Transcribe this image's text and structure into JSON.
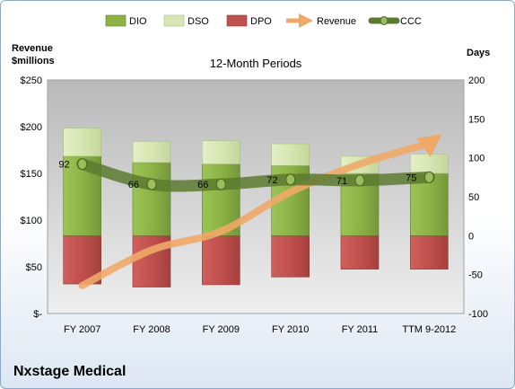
{
  "chart_data": {
    "type": "bar",
    "title": "12-Month Periods",
    "company": "Nxstage Medical",
    "left_axis": {
      "label_line1": "Revenue",
      "label_line2": "$millions",
      "min": 0,
      "max": 250,
      "step": 50,
      "ticks": [
        "$-",
        "$50",
        "$100",
        "$150",
        "$200",
        "$250"
      ]
    },
    "right_axis": {
      "label": "Days",
      "min": -100,
      "max": 200,
      "step": 50,
      "ticks": [
        "-100",
        "-50",
        "0",
        "50",
        "100",
        "150",
        "200"
      ]
    },
    "categories": [
      "FY 2007",
      "FY 2008",
      "FY 2009",
      "FY 2010",
      "FY 2011",
      "TTM 9-2012"
    ],
    "series": [
      {
        "name": "DIO",
        "axis": "right",
        "kind": "stacked-positive",
        "color": "#8db346",
        "values": [
          102,
          94,
          92,
          90,
          80,
          80
        ]
      },
      {
        "name": "DSO",
        "axis": "right",
        "kind": "stacked-positive",
        "color": "#d7e6b2",
        "values": [
          36,
          27,
          30,
          28,
          22,
          25
        ]
      },
      {
        "name": "DPO",
        "axis": "right",
        "kind": "stacked-negative",
        "color": "#c0504d",
        "values": [
          -62,
          -66,
          -63,
          -53,
          -43,
          -43
        ]
      },
      {
        "name": "Revenue",
        "axis": "left",
        "kind": "arrow",
        "color": "#f0a868",
        "values": [
          30,
          68,
          88,
          130,
          160,
          182
        ]
      },
      {
        "name": "CCC",
        "axis": "right",
        "kind": "line",
        "color": "#5c7a30",
        "values": [
          92,
          66,
          66,
          72,
          71,
          75
        ],
        "labels": [
          "92",
          "66",
          "66",
          "72",
          "71",
          "75"
        ]
      }
    ],
    "legend": {
      "position": "top",
      "entries": [
        "DIO",
        "DSO",
        "DPO",
        "Revenue",
        "CCC"
      ]
    },
    "grid": false
  }
}
